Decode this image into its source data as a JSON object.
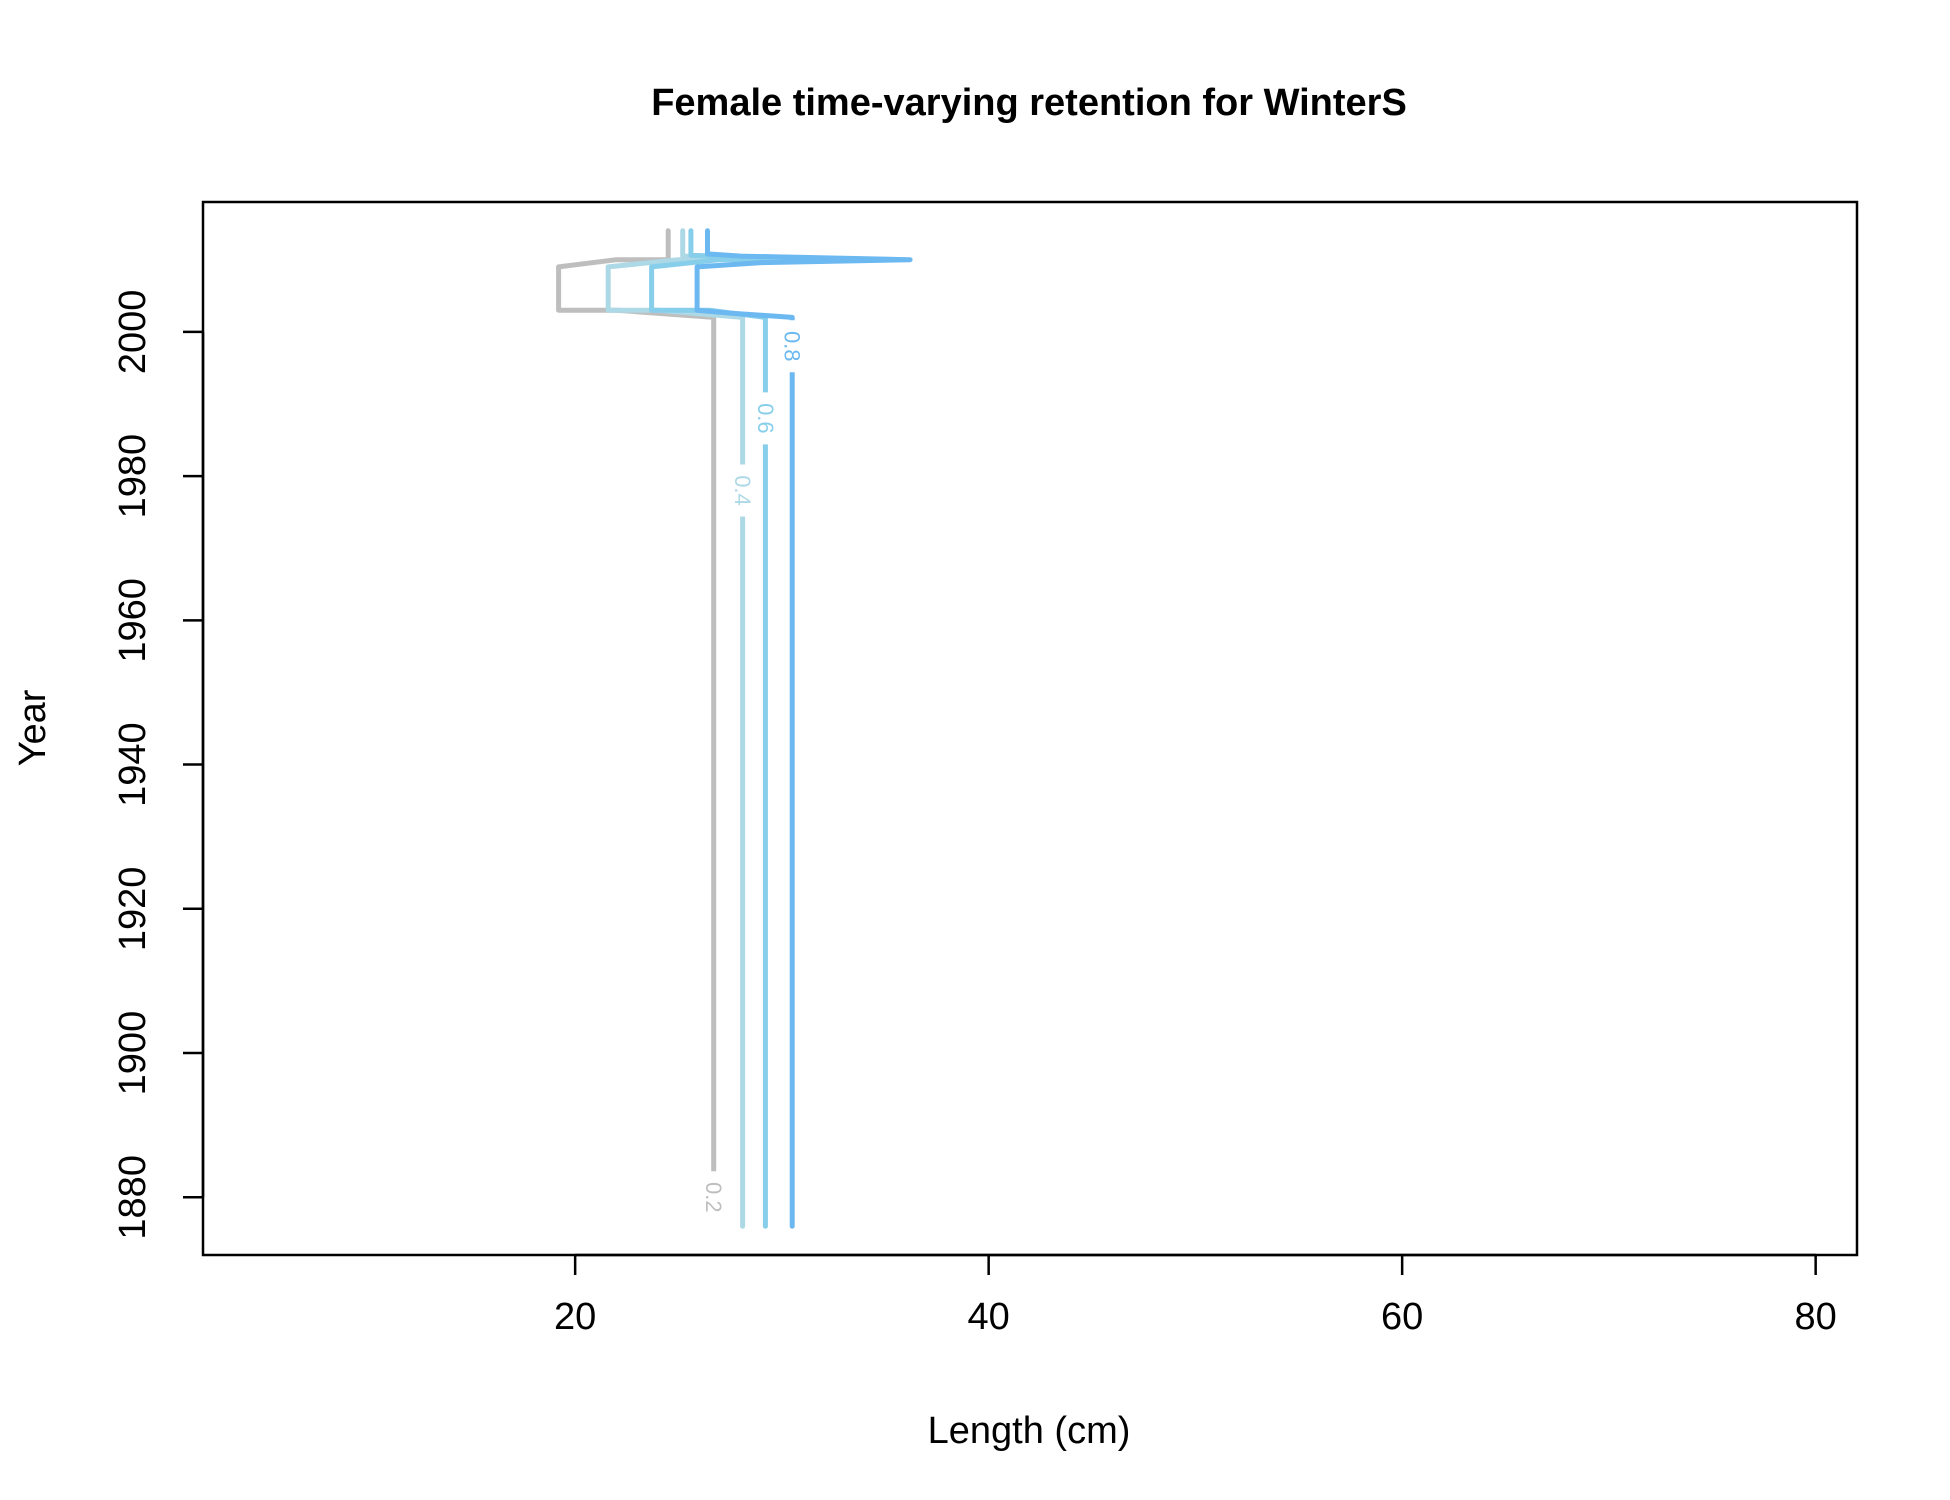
{
  "chart_data": {
    "type": "line",
    "title": "Female time-varying retention for WinterS",
    "xlabel": "Length (cm)",
    "ylabel": "Year",
    "xlim": [
      2,
      82
    ],
    "ylim": [
      1872,
      2018
    ],
    "xticks": [
      20,
      40,
      60,
      80
    ],
    "yticks": [
      1880,
      1900,
      1920,
      1940,
      1960,
      1980,
      2000
    ],
    "grid": false,
    "series": [
      {
        "name": "0.2",
        "color": "#bebebe",
        "points": [
          [
            26.7,
            1883
          ],
          [
            26.7,
            2002
          ],
          [
            22.0,
            2003
          ],
          [
            19.2,
            2003
          ],
          [
            19.2,
            2009
          ],
          [
            22.0,
            2010
          ],
          [
            24.5,
            2010
          ],
          [
            24.5,
            2014
          ]
        ],
        "label_position": [
          26.7,
          1880
        ]
      },
      {
        "name": "0.4",
        "color": "#add8e6",
        "points": [
          [
            28.1,
            1876
          ],
          [
            28.1,
            1975
          ],
          [
            28.1,
            1981
          ],
          [
            28.1,
            2002
          ],
          [
            24.0,
            2003
          ],
          [
            21.6,
            2003
          ],
          [
            21.6,
            2009
          ],
          [
            25.0,
            2010
          ],
          [
            28.0,
            2010.2
          ],
          [
            25.2,
            2010.5
          ],
          [
            25.2,
            2014
          ]
        ],
        "label_position": [
          28.1,
          1978
        ]
      },
      {
        "name": "0.6",
        "color": "#87ceeb",
        "points": [
          [
            29.2,
            1876
          ],
          [
            29.2,
            1985
          ],
          [
            29.2,
            1991
          ],
          [
            29.2,
            2002
          ],
          [
            26.5,
            2003
          ],
          [
            23.7,
            2003
          ],
          [
            23.7,
            2009
          ],
          [
            27.0,
            2010
          ],
          [
            31.0,
            2010.2
          ],
          [
            25.6,
            2010.6
          ],
          [
            25.6,
            2014
          ]
        ],
        "label_position": [
          29.2,
          1988
        ]
      },
      {
        "name": "0.8",
        "color": "#6cb8f0",
        "points": [
          [
            30.5,
            1876
          ],
          [
            30.5,
            1995
          ],
          [
            30.5,
            2002
          ],
          [
            27.5,
            2002.6
          ],
          [
            25.9,
            2003
          ],
          [
            25.9,
            2009
          ],
          [
            29.0,
            2009.6
          ],
          [
            36.2,
            2010
          ],
          [
            28.0,
            2010.5
          ],
          [
            26.4,
            2010.8
          ],
          [
            26.4,
            2014
          ]
        ],
        "label_position": [
          30.5,
          1998
        ]
      }
    ]
  }
}
